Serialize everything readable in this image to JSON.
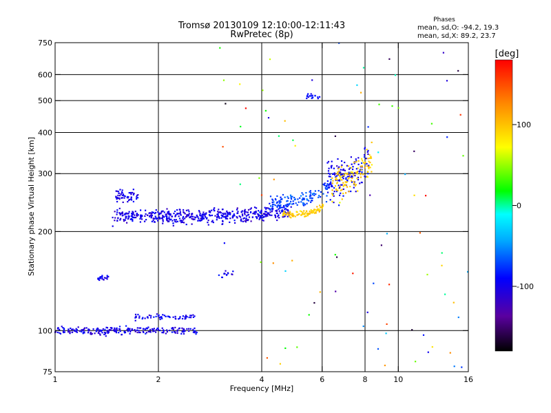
{
  "chart_data": {
    "type": "scatter",
    "title": "Tromsø 20130109 12:10:00-12:11:43",
    "subtitle": "RwPretec (8p)",
    "xlabel": "Frequency [MHz]",
    "ylabel": "Stationary phase Virtual Height [km]",
    "x_scale": "log",
    "y_scale": "log",
    "xlim": [
      1,
      16
    ],
    "ylim": [
      75,
      750
    ],
    "x_ticks": [
      1,
      2,
      4,
      6,
      8,
      10,
      16
    ],
    "y_ticks": [
      75,
      100,
      200,
      300,
      400,
      500,
      600,
      750
    ],
    "grid_x": [
      2,
      4,
      6,
      8,
      10
    ],
    "grid_y": [
      100,
      200,
      300,
      400,
      500,
      600
    ],
    "stats": {
      "header": "Phases",
      "line_o": "mean, sd,O: -94.2, 19.3",
      "line_x": "mean, sd,X:  89.2, 23.7"
    },
    "colorbar": {
      "label": "[deg]",
      "range": [
        -180,
        180
      ],
      "ticks": [
        100,
        0,
        -100
      ],
      "colors": [
        "#000000",
        "#5a00a0",
        "#0000ff",
        "#00aaff",
        "#00ffff",
        "#00ff00",
        "#ffff00",
        "#ff8800",
        "#ff0000"
      ]
    },
    "clusters": [
      {
        "name": "F-layer low",
        "phase": -110,
        "x_range": [
          1.47,
          4.9
        ],
        "y_center": 222,
        "y_spread": 16,
        "y_rise": 8,
        "n": 520
      },
      {
        "name": "F-layer bump",
        "phase": -110,
        "x_range": [
          1.5,
          1.75
        ],
        "y_center": 255,
        "y_spread": 18,
        "y_rise": 0,
        "n": 60
      },
      {
        "name": "F-layer mid",
        "phase": -80,
        "x_range": [
          4.2,
          6.4
        ],
        "y_center": 245,
        "y_spread": 18,
        "y_rise": 35,
        "n": 140
      },
      {
        "name": "X-trace",
        "phase": 95,
        "x_range": [
          4.6,
          6.1
        ],
        "y_center": 225,
        "y_spread": 8,
        "y_rise": 15,
        "n": 90
      },
      {
        "name": "cusp blue",
        "phase": -105,
        "x_range": [
          6.2,
          8.2
        ],
        "y_center": 290,
        "y_spread": 60,
        "y_rise": 40,
        "n": 140
      },
      {
        "name": "cusp yellow",
        "phase": 95,
        "x_range": [
          6.4,
          8.4
        ],
        "y_center": 280,
        "y_spread": 45,
        "y_rise": 60,
        "n": 110
      },
      {
        "name": "E-layer",
        "phase": -110,
        "x_range": [
          1.0,
          2.6
        ],
        "y_center": 100,
        "y_spread": 4,
        "y_rise": 0,
        "n": 230
      },
      {
        "name": "E-layer upper",
        "phase": -105,
        "x_range": [
          1.7,
          2.55
        ],
        "y_center": 110,
        "y_spread": 3,
        "y_rise": 0,
        "n": 60
      },
      {
        "name": "Es 140",
        "phase": -105,
        "x_range": [
          1.33,
          1.43
        ],
        "y_center": 145,
        "y_spread": 4,
        "y_rise": 0,
        "n": 20
      },
      {
        "name": "Es 150",
        "phase": -105,
        "x_range": [
          3.0,
          3.3
        ],
        "y_center": 148,
        "y_spread": 6,
        "y_rise": 0,
        "n": 14
      },
      {
        "name": "scatter upper",
        "phase": -100,
        "x_range": [
          5.4,
          5.9
        ],
        "y_center": 515,
        "y_spread": 15,
        "y_rise": 0,
        "n": 18
      }
    ],
    "noise_points": 90
  }
}
